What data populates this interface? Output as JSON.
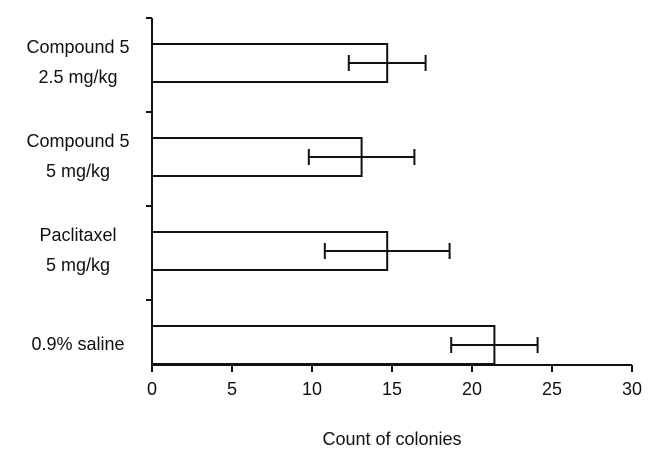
{
  "chart_data": {
    "type": "hbar-error",
    "categories": [
      [
        "Compound 5",
        "2.5 mg/kg"
      ],
      [
        "Compound 5",
        "5 mg/kg"
      ],
      [
        "Paclitaxel",
        "5 mg/kg"
      ],
      [
        "0.9% saline"
      ]
    ],
    "values": [
      14.7,
      13.1,
      14.7,
      21.4
    ],
    "errors": [
      2.4,
      3.3,
      3.9,
      2.7
    ],
    "color": "#ffffff",
    "xlim": [
      0,
      30
    ],
    "xticks": [
      0,
      5,
      10,
      15,
      20,
      25,
      30
    ],
    "xlabel": "Count of colonies"
  }
}
